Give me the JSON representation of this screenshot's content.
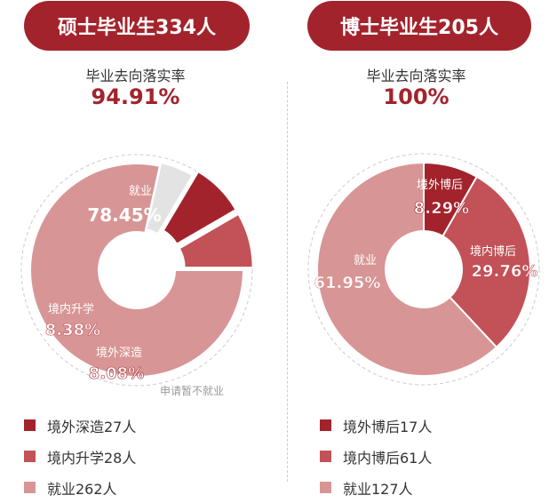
{
  "colors": {
    "dark": "#a3232c",
    "medium": "#c25257",
    "light": "#d89595",
    "other": "#e3e3e3"
  },
  "panels": [
    {
      "banner": "硕士毕业生334人",
      "subtitle": "毕业去向落实率",
      "rate": "94.91%",
      "legend": [
        "境外深造27人",
        "境内升学28人",
        "就业262人"
      ]
    },
    {
      "banner": "博士毕业生205人",
      "subtitle": "毕业去向落实率",
      "rate": "100%",
      "legend": [
        "境外博后17人",
        "境内博后61人",
        "就业127人"
      ]
    }
  ],
  "chart_data": [
    {
      "type": "pie",
      "title": "硕士毕业生334人",
      "slices": [
        {
          "name": "就业",
          "value": 78.45,
          "label": "78.45%",
          "color": "#d89595"
        },
        {
          "name": "申请暂不就业",
          "value": 5.09,
          "label": "",
          "color": "#e3e3e3"
        },
        {
          "name": "境外深造",
          "value": 8.08,
          "label": "8.08%",
          "color": "#a3232c"
        },
        {
          "name": "境内升学",
          "value": 8.38,
          "label": "8.38%",
          "color": "#c25257"
        }
      ]
    },
    {
      "type": "pie",
      "title": "博士毕业生205人",
      "slices": [
        {
          "name": "境外博后",
          "value": 8.29,
          "label": "8.29%",
          "color": "#a3232c"
        },
        {
          "name": "境内博后",
          "value": 29.76,
          "label": "29.76%",
          "color": "#c25257"
        },
        {
          "name": "就业",
          "value": 61.95,
          "label": "61.95%",
          "color": "#d89595"
        }
      ]
    }
  ]
}
